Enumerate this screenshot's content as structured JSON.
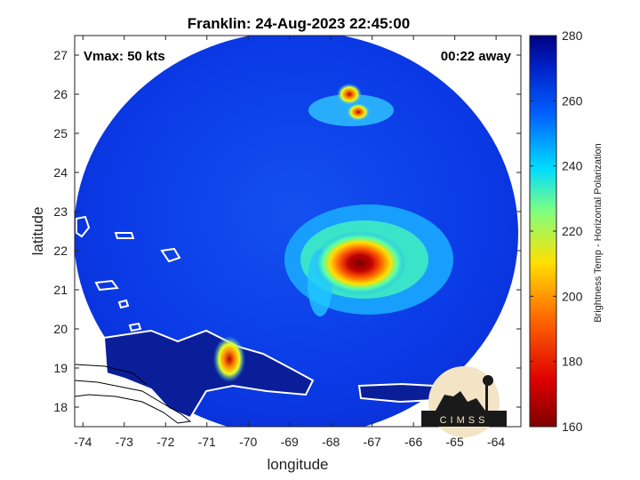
{
  "chart_data": {
    "type": "heatmap",
    "title": "Franklin: 24-Aug-2023 22:45:00",
    "xlabel": "longitude",
    "ylabel": "latitude",
    "xlim": [
      -74.2,
      -63.4
    ],
    "ylim": [
      17.5,
      27.5
    ],
    "xticks": [
      -74,
      -73,
      -72,
      -71,
      -70,
      -69,
      -68,
      -67,
      -66,
      -65,
      -64
    ],
    "yticks": [
      18,
      19,
      20,
      21,
      22,
      23,
      24,
      25,
      26,
      27
    ],
    "annotations": {
      "vmax": "Vmax: 50 kts",
      "away": "00:22 away"
    },
    "colorbar": {
      "label": "Brightness Temp - Horizontal Polarization",
      "min": 160,
      "max": 280,
      "ticks": [
        160,
        180,
        200,
        220,
        240,
        260,
        280
      ],
      "colormap": "jet"
    },
    "swath": {
      "center_lon": -68.8,
      "center_lat": 22.4,
      "radius_deg_lon": 5.5,
      "radius_deg_lat": 5.1
    },
    "features": [
      {
        "name": "Franklin core",
        "lon": -67.4,
        "lat": 21.5,
        "min_temp": 168
      },
      {
        "name": "Hispaniola convection",
        "lon": -70.4,
        "lat": 19.1,
        "min_temp": 178
      },
      {
        "name": "Northern cells",
        "lon": -67.5,
        "lat": 25.8,
        "min_temp": 182
      }
    ],
    "logo_text": "CIMSS"
  }
}
